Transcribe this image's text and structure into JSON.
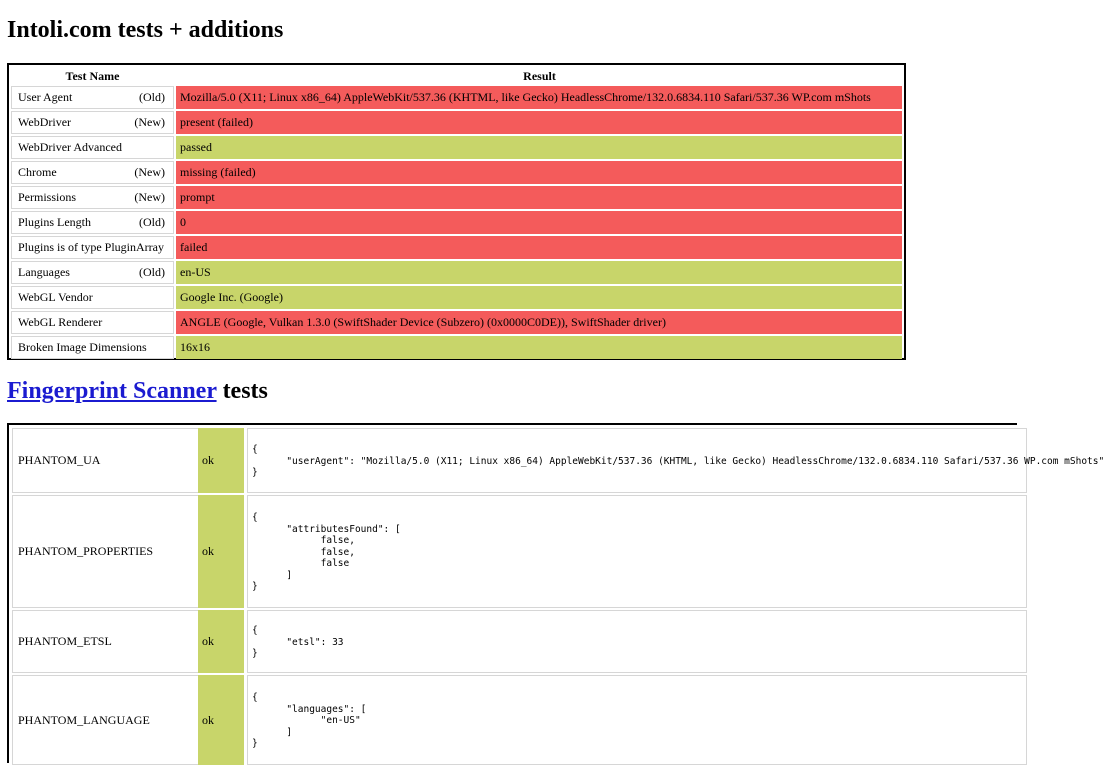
{
  "intoli": {
    "title": "Intoli.com tests + additions",
    "headers": {
      "name": "Test Name",
      "result": "Result"
    },
    "rows": [
      {
        "name": "User Agent",
        "tag": "(Old)",
        "result": "Mozilla/5.0 (X11; Linux x86_64) AppleWebKit/537.36 (KHTML, like Gecko) HeadlessChrome/132.0.6834.110 Safari/537.36 WP.com mShots",
        "status": "fail"
      },
      {
        "name": "WebDriver",
        "tag": "(New)",
        "result": "present (failed)",
        "status": "fail"
      },
      {
        "name": "WebDriver Advanced",
        "tag": "",
        "result": "passed",
        "status": "pass"
      },
      {
        "name": "Chrome",
        "tag": "(New)",
        "result": "missing (failed)",
        "status": "fail"
      },
      {
        "name": "Permissions",
        "tag": "(New)",
        "result": "prompt",
        "status": "fail"
      },
      {
        "name": "Plugins Length",
        "tag": "(Old)",
        "result": "0",
        "status": "fail"
      },
      {
        "name": "Plugins is of type PluginArray",
        "tag": "",
        "result": "failed",
        "status": "fail"
      },
      {
        "name": "Languages",
        "tag": "(Old)",
        "result": "en-US",
        "status": "pass"
      },
      {
        "name": "WebGL Vendor",
        "tag": "",
        "result": "Google Inc. (Google)",
        "status": "pass"
      },
      {
        "name": "WebGL Renderer",
        "tag": "",
        "result": "ANGLE (Google, Vulkan 1.3.0 (SwiftShader Device (Subzero) (0x0000C0DE)), SwiftShader driver)",
        "status": "fail"
      },
      {
        "name": "Broken Image Dimensions",
        "tag": "",
        "result": "16x16",
        "status": "pass"
      }
    ]
  },
  "fingerprint": {
    "title_link": "Fingerprint Scanner",
    "title_suffix": " tests",
    "rows": [
      {
        "name": "PHANTOM_UA",
        "status": "ok",
        "data": "{\n      \"userAgent\": \"Mozilla/5.0 (X11; Linux x86_64) AppleWebKit/537.36 (KHTML, like Gecko) HeadlessChrome/132.0.6834.110 Safari/537.36 WP.com mShots\"\n}"
      },
      {
        "name": "PHANTOM_PROPERTIES",
        "status": "ok",
        "data": "{\n      \"attributesFound\": [\n            false,\n            false,\n            false\n      ]\n}"
      },
      {
        "name": "PHANTOM_ETSL",
        "status": "ok",
        "data": "{\n      \"etsl\": 33\n}"
      },
      {
        "name": "PHANTOM_LANGUAGE",
        "status": "ok",
        "data": "{\n      \"languages\": [\n            \"en-US\"\n      ]\n}"
      }
    ]
  },
  "colors": {
    "fail": "#f45b5b",
    "pass": "#c8d56a",
    "link": "#1b1bd0"
  }
}
